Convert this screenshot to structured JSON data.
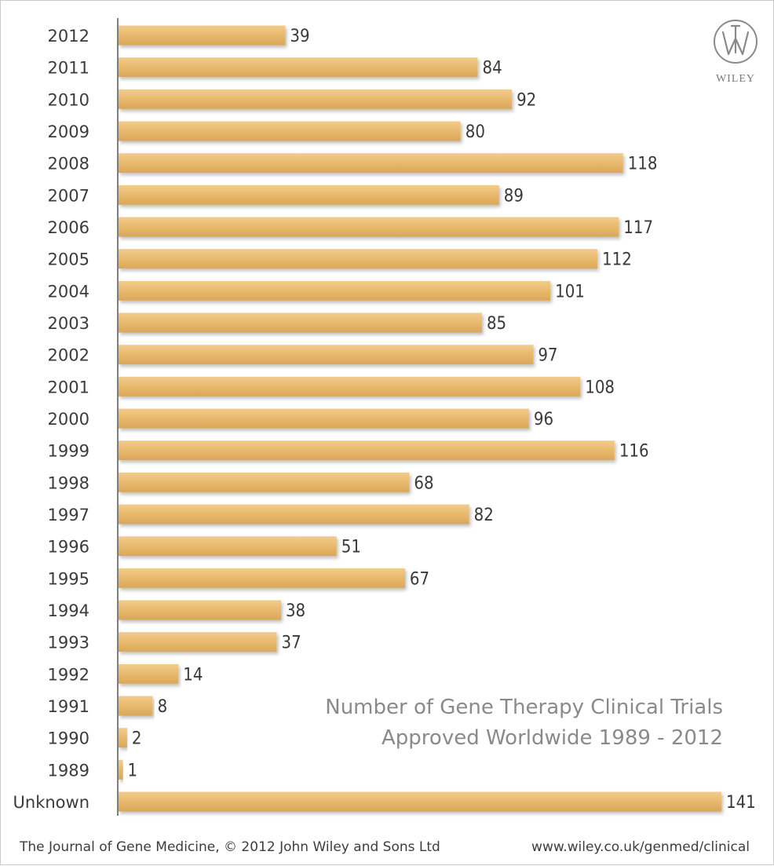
{
  "chart_data": {
    "type": "bar",
    "orientation": "horizontal",
    "title": "Number of Gene Therapy Clinical Trials",
    "subtitle": "Approved Worldwide 1989 - 2012",
    "categories": [
      "2012",
      "2011",
      "2010",
      "2009",
      "2008",
      "2007",
      "2006",
      "2005",
      "2004",
      "2003",
      "2002",
      "2001",
      "2000",
      "1999",
      "1998",
      "1997",
      "1996",
      "1995",
      "1994",
      "1993",
      "1992",
      "1991",
      "1990",
      "1989",
      "Unknown"
    ],
    "values": [
      39,
      84,
      92,
      80,
      118,
      89,
      117,
      112,
      101,
      85,
      97,
      108,
      96,
      116,
      68,
      82,
      51,
      67,
      38,
      37,
      14,
      8,
      2,
      1,
      141
    ],
    "xlim": [
      0,
      141
    ],
    "grid": false,
    "data_labels": true,
    "bar_color": "#e8b96c"
  },
  "logo": {
    "text": "WILEY"
  },
  "footer": {
    "left": "The Journal of Gene Medicine, © 2012 John Wiley and Sons Ltd",
    "right": "www.wiley.co.uk/genmed/clinical"
  }
}
